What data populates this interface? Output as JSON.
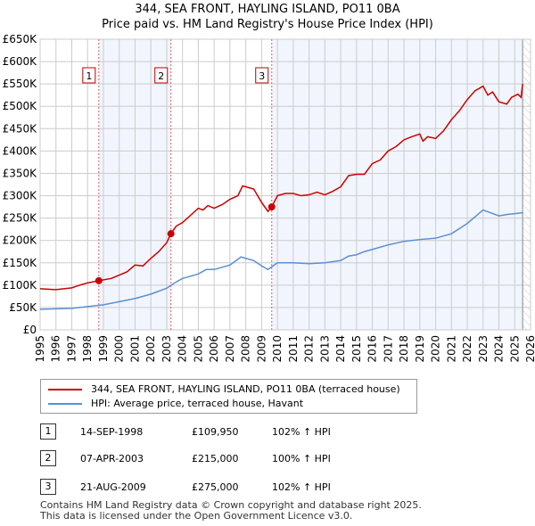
{
  "title": "344, SEA FRONT, HAYLING ISLAND, PO11 0BA",
  "subtitle": "Price paid vs. HM Land Registry's House Price Index (HPI)",
  "chart_data": {
    "type": "line",
    "title": "344, SEA FRONT, HAYLING ISLAND, PO11 0BA",
    "xlim": [
      1995,
      2026
    ],
    "ylim": [
      0,
      650000
    ],
    "yticks": [
      0,
      50000,
      100000,
      150000,
      200000,
      250000,
      300000,
      350000,
      400000,
      450000,
      500000,
      550000,
      600000,
      650000
    ],
    "ytick_labels": [
      "£0",
      "£50K",
      "£100K",
      "£150K",
      "£200K",
      "£250K",
      "£300K",
      "£350K",
      "£400K",
      "£450K",
      "£500K",
      "£550K",
      "£600K",
      "£650K"
    ],
    "xticks": [
      1995,
      1996,
      1997,
      1998,
      1999,
      2000,
      2001,
      2002,
      2003,
      2004,
      2005,
      2006,
      2007,
      2008,
      2009,
      2010,
      2011,
      2012,
      2013,
      2014,
      2015,
      2016,
      2017,
      2018,
      2019,
      2020,
      2021,
      2022,
      2023,
      2024,
      2025,
      2026
    ],
    "grid": true,
    "series": [
      {
        "name": "344, SEA FRONT, HAYLING ISLAND, PO11 0BA (terraced house)",
        "color": "#cc0000",
        "x": [
          1995,
          1996,
          1997,
          1997.5,
          1998,
          1998.7,
          1999.5,
          2000.5,
          2001,
          2001.5,
          2002,
          2002.5,
          2003,
          2003.27,
          2003.6,
          2004,
          2005,
          2005.3,
          2005.6,
          2006,
          2006.5,
          2007,
          2007.5,
          2007.8,
          2008,
          2008.5,
          2009,
          2009.4,
          2009.64,
          2010,
          2010.5,
          2011,
          2011.5,
          2012,
          2012.5,
          2013,
          2013.5,
          2014,
          2014.5,
          2015,
          2015.5,
          2016,
          2016.5,
          2017,
          2017.5,
          2018,
          2018.5,
          2019,
          2019.2,
          2019.5,
          2020,
          2020.5,
          2021,
          2021.5,
          2022,
          2022.5,
          2023,
          2023.3,
          2023.6,
          2024,
          2024.5,
          2024.8,
          2025.2,
          2025.4,
          2025.5
        ],
        "y": [
          92000,
          90000,
          94000,
          100000,
          105000,
          109950,
          115000,
          130000,
          145000,
          143000,
          160000,
          175000,
          195000,
          215000,
          232000,
          240000,
          272000,
          268000,
          278000,
          272000,
          280000,
          292000,
          300000,
          322000,
          320000,
          315000,
          285000,
          265000,
          275000,
          300000,
          305000,
          305000,
          300000,
          302000,
          308000,
          302000,
          310000,
          320000,
          345000,
          348000,
          348000,
          372000,
          380000,
          400000,
          410000,
          425000,
          432000,
          438000,
          422000,
          432000,
          428000,
          445000,
          470000,
          490000,
          515000,
          535000,
          545000,
          525000,
          532000,
          510000,
          505000,
          520000,
          527000,
          520000,
          550000
        ]
      },
      {
        "name": "HPI: Average price, terraced house, Havant",
        "color": "#5b8fd4",
        "x": [
          1995,
          1997,
          1998,
          1999,
          2000,
          2001,
          2002,
          2003,
          2003.5,
          2004,
          2005,
          2005.5,
          2006,
          2007,
          2007.7,
          2008.5,
          2009,
          2009.4,
          2010,
          2011,
          2012,
          2013,
          2014,
          2014.5,
          2015,
          2015.5,
          2016,
          2017,
          2018,
          2019,
          2020,
          2021,
          2022,
          2022.8,
          2023,
          2024,
          2024.5,
          2025.5
        ],
        "y": [
          46000,
          48000,
          52000,
          56000,
          63000,
          70000,
          80000,
          93000,
          105000,
          115000,
          125000,
          135000,
          135000,
          145000,
          163000,
          155000,
          143000,
          135000,
          150000,
          150000,
          148000,
          150000,
          155000,
          165000,
          168000,
          175000,
          180000,
          190000,
          198000,
          202000,
          205000,
          215000,
          238000,
          262000,
          268000,
          255000,
          258000,
          262000
        ]
      }
    ],
    "sales": [
      {
        "label": "1",
        "x": 1998.71,
        "y": 109950
      },
      {
        "label": "2",
        "x": 2003.27,
        "y": 215000
      },
      {
        "label": "3",
        "x": 2009.64,
        "y": 275000
      }
    ],
    "data_end": 2025.5
  },
  "legend": {
    "price": "344, SEA FRONT, HAYLING ISLAND, PO11 0BA (terraced house)",
    "hpi": "HPI: Average price, terraced house, Havant"
  },
  "table": [
    {
      "num": "1",
      "date": "14-SEP-1998",
      "price": "£109,950",
      "hpi": "102% ↑ HPI"
    },
    {
      "num": "2",
      "date": "07-APR-2003",
      "price": "£215,000",
      "hpi": "100% ↑ HPI"
    },
    {
      "num": "3",
      "date": "21-AUG-2009",
      "price": "£275,000",
      "hpi": "102% ↑ HPI"
    }
  ],
  "footer": [
    "Contains HM Land Registry data © Crown copyright and database right 2025.",
    "This data is licensed under the Open Government Licence v3.0."
  ]
}
